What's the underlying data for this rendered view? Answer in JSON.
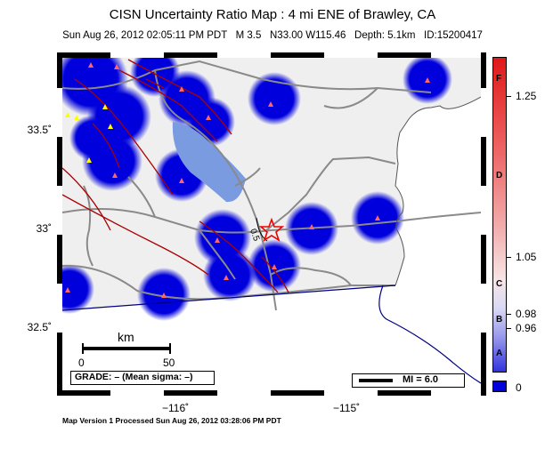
{
  "title": "CISN Uncertainty Ratio Map : 4 mi ENE of Brawley, CA",
  "subtitle": {
    "datetime": "Sun Aug 26, 2012 02:05:11 PM PDT",
    "magnitude": "M 3.5",
    "location": "N33.00 W115.46",
    "depth": "Depth: 5.1km",
    "id": "ID:15200417"
  },
  "axes": {
    "y_ticks": [
      "33.5˚",
      "33˚",
      "32.5˚"
    ],
    "x_ticks": [
      "−116˚",
      "−115˚"
    ]
  },
  "map": {
    "contour_label": "0.5",
    "scale_bar": {
      "unit": "km",
      "start": "0",
      "end": "50"
    },
    "grade_box": "GRADE: – (Mean sigma: –)",
    "mi_legend": "MI = 6.0",
    "colors": {
      "land": "#efefef",
      "water": "#8aa6e0",
      "roads": "#8a8a8a",
      "faults": "#aa0000",
      "coast": "#000080",
      "blob": "#0000dd"
    }
  },
  "colorbar": {
    "right_labels": [
      "1.25",
      "1.05",
      "0.98",
      "0.96",
      "0"
    ],
    "grade_letters": [
      "F",
      "D",
      "C",
      "B",
      "A"
    ]
  },
  "footer": "Map Version 1 Processed Sun Aug 26, 2012 03:28:06 PM PDT"
}
